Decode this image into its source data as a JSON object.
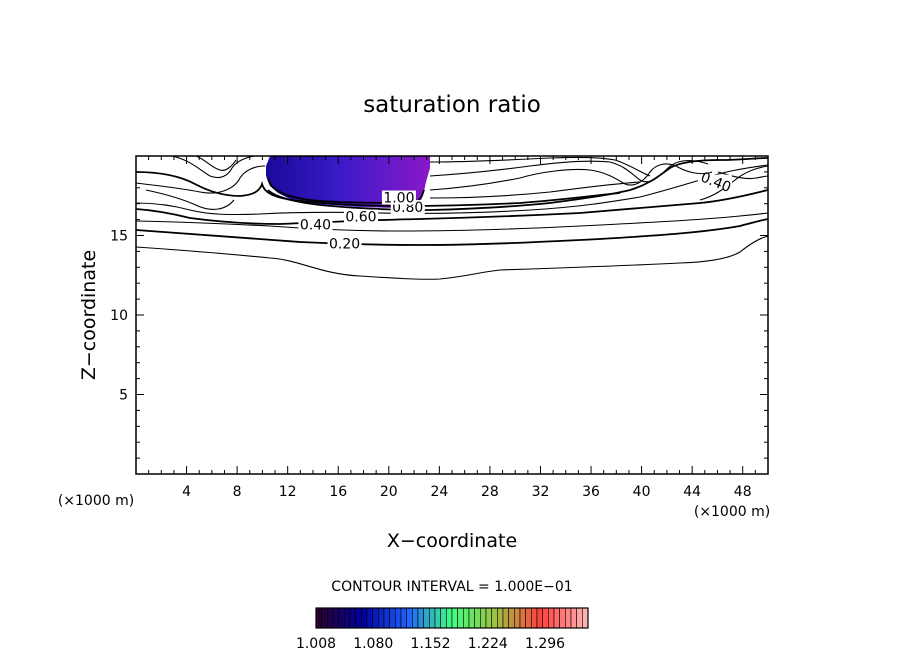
{
  "chart_data": {
    "type": "contour",
    "title": "saturation ratio",
    "xlabel": "X−coordinate",
    "ylabel": "Z−coordinate",
    "x_unit_label": "(×1000 m)",
    "z_unit_label": "(×1000 m)",
    "xlim": [
      0,
      50
    ],
    "ylim": [
      0,
      20
    ],
    "x_ticks": [
      4,
      8,
      12,
      16,
      20,
      24,
      28,
      32,
      36,
      40,
      44,
      48
    ],
    "y_ticks": [
      5,
      10,
      15
    ],
    "contour_interval_text": "CONTOUR INTERVAL = 1.000E−01",
    "contour_labels": [
      {
        "text": "0.20",
        "x": 16.5,
        "z": 14.3
      },
      {
        "text": "0.40",
        "x": 14.2,
        "z": 15.5
      },
      {
        "text": "0.60",
        "x": 17.8,
        "z": 16.0
      },
      {
        "text": "0.80",
        "x": 21.5,
        "z": 16.6
      },
      {
        "text": "1.00",
        "x": 20.8,
        "z": 17.2
      },
      {
        "text": "0.40",
        "x": 45.8,
        "z": 18.2
      }
    ],
    "shaded_region": {
      "threshold": 1.0,
      "x_range": [
        10.5,
        23.5
      ],
      "z_range": [
        17.0,
        20.0
      ]
    },
    "colorbar": {
      "ticks": [
        "1.008",
        "1.080",
        "1.152",
        "1.224",
        "1.296"
      ],
      "min": 1.008,
      "max": 1.35,
      "colors": [
        "#2a0030",
        "#0000a0",
        "#2060ff",
        "#40ff80",
        "#a0c040",
        "#ff4040",
        "#ffb0b0"
      ]
    }
  }
}
